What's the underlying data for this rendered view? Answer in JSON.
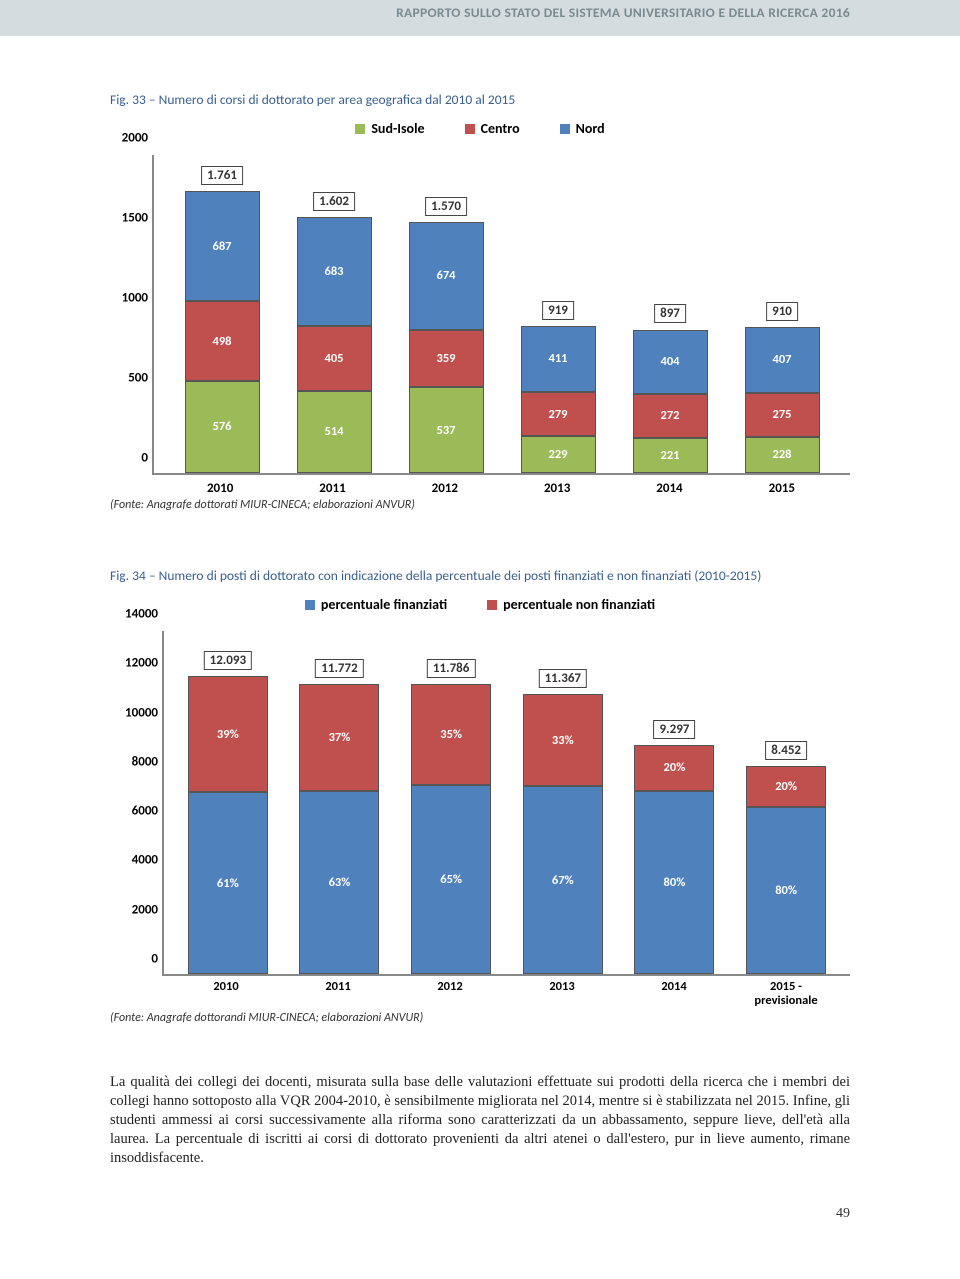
{
  "header": {
    "title": "RAPPORTO SULLO STATO DEL SISTEMA UNIVERSITARIO E DELLA RICERCA 2016"
  },
  "fig33": {
    "caption": "Fig. 33 – Numero di corsi di dottorato per area geografica dal 2010 al 2015",
    "source": "(Fonte: Anagrafe dottorati MIUR-CINECA; elaborazioni ANVUR)",
    "legend": [
      {
        "label": "Sud-Isole",
        "color": "#9bbb59"
      },
      {
        "label": "Centro",
        "color": "#c0504d"
      },
      {
        "label": "Nord",
        "color": "#4f81bd"
      }
    ],
    "ymax": 2000,
    "yticks": [
      0,
      500,
      1000,
      1500,
      2000
    ],
    "categories": [
      "2010",
      "2011",
      "2012",
      "2013",
      "2014",
      "2015"
    ],
    "colors": {
      "sud": "#9bbb59",
      "centro": "#c0504d",
      "nord": "#4f81bd"
    },
    "bars": [
      {
        "sud": 576,
        "centro": 498,
        "nord": 687,
        "total": "1.761"
      },
      {
        "sud": 514,
        "centro": 405,
        "nord": 683,
        "total": "1.602"
      },
      {
        "sud": 537,
        "centro": 359,
        "nord": 674,
        "total": "1.570"
      },
      {
        "sud": 229,
        "centro": 279,
        "nord": 411,
        "total": "919"
      },
      {
        "sud": 221,
        "centro": 272,
        "nord": 404,
        "total": "897"
      },
      {
        "sud": 228,
        "centro": 275,
        "nord": 407,
        "total": "910"
      }
    ]
  },
  "fig34": {
    "caption": "Fig. 34 – Numero di posti di dottorato con indicazione della percentuale dei posti finanziati e non finanziati (2010-2015)",
    "source": "(Fonte: Anagrafe dottorandi MIUR-CINECA; elaborazioni ANVUR)",
    "legend": [
      {
        "label": "percentuale finanziati",
        "color": "#4f81bd"
      },
      {
        "label": "percentuale non finanziati",
        "color": "#c0504d"
      }
    ],
    "ymax": 14000,
    "yticks": [
      0,
      2000,
      4000,
      6000,
      8000,
      10000,
      12000,
      14000
    ],
    "categories": [
      "2010",
      "2011",
      "2012",
      "2013",
      "2014",
      "2015 -\nprevisionale"
    ],
    "colors": {
      "fin": "#4f81bd",
      "nonfin": "#c0504d"
    },
    "bars": [
      {
        "total_val": 12093,
        "total_lab": "12.093",
        "fin_pct": 61,
        "nonfin_pct": 39
      },
      {
        "total_val": 11772,
        "total_lab": "11.772",
        "fin_pct": 63,
        "nonfin_pct": 37
      },
      {
        "total_val": 11786,
        "total_lab": "11.786",
        "fin_pct": 65,
        "nonfin_pct": 35
      },
      {
        "total_val": 11367,
        "total_lab": "11.367",
        "fin_pct": 67,
        "nonfin_pct": 33
      },
      {
        "total_val": 9297,
        "total_lab": "9.297",
        "fin_pct": 80,
        "nonfin_pct": 20
      },
      {
        "total_val": 8452,
        "total_lab": "8.452",
        "fin_pct": 80,
        "nonfin_pct": 20
      }
    ]
  },
  "body": "La qualità dei collegi dei docenti, misurata sulla base delle valutazioni effettuate sui prodotti della ricerca che i membri dei collegi hanno sottoposto alla VQR 2004-2010, è sensibilmente migliorata nel 2014, mentre si è stabilizzata nel 2015. Infine, gli studenti ammessi ai corsi successivamente alla riforma sono caratterizzati da un abbassamento, seppure lieve, dell'età alla laurea. La percentuale di iscritti ai corsi di dottorato provenienti da altri atenei o dall'estero, pur in lieve aumento, rimane insoddisfacente.",
  "page_number": "49"
}
